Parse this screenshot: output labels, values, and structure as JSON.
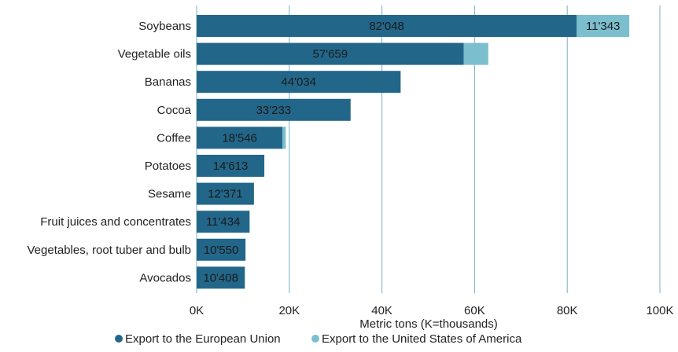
{
  "chart_data": {
    "type": "bar",
    "orientation": "horizontal",
    "stacked": true,
    "categories": [
      "Soybeans",
      "Vegetable oils",
      "Bananas",
      "Cocoa",
      "Coffee",
      "Potatoes",
      "Sesame",
      "Fruit juices and concentrates",
      "Vegetables, root tuber and bulb",
      "Avocados"
    ],
    "series": [
      {
        "name": "Export to the European Union",
        "color": "#22678a",
        "values": [
          82048,
          57659,
          44034,
          33233,
          18546,
          14613,
          12371,
          11434,
          10550,
          10408
        ],
        "labels": [
          "82'048",
          "57'659",
          "44'034",
          "33'233",
          "18'546",
          "14'613",
          "12'371",
          "11'434",
          "10'550",
          "10'408"
        ]
      },
      {
        "name": "Export to the United States of America",
        "color": "#7bbfcf",
        "values": [
          11343,
          5300,
          0,
          0,
          700,
          0,
          0,
          0,
          0,
          0
        ],
        "labels": [
          "11'343",
          "",
          "",
          "",
          "",
          "",
          "",
          "",
          "",
          ""
        ]
      }
    ],
    "xlabel": "Metric tons (K=thousands)",
    "xlim": [
      0,
      100000
    ],
    "xticks": [
      0,
      20000,
      40000,
      60000,
      80000,
      100000
    ],
    "xtick_labels": [
      "0K",
      "20K",
      "40K",
      "60K",
      "80K",
      "100K"
    ],
    "grid": true,
    "legend_position": "bottom"
  }
}
